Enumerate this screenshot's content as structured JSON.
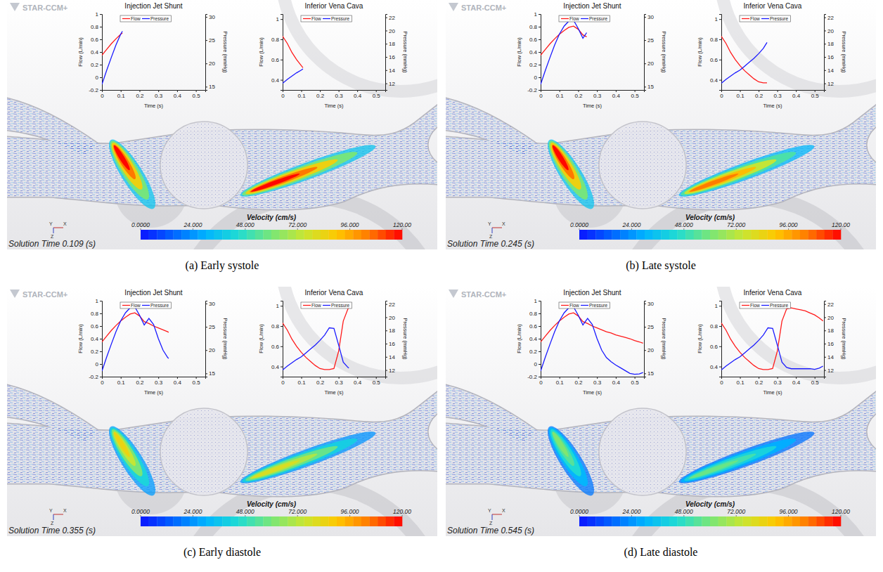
{
  "chart_data": [
    {
      "type": "line",
      "title": "Injection Jet Shunt",
      "x_label": "Time (s)",
      "y_label": "Flow (L/min)",
      "y2_label": "Pressure (mmHg)",
      "x": [
        0,
        0.025,
        0.05,
        0.075,
        0.1,
        0.109
      ],
      "series": [
        {
          "name": "Flow",
          "color": "#ff1a1a",
          "values": [
            0.35,
            0.44,
            0.53,
            0.61,
            0.68,
            0.7
          ]
        },
        {
          "name": "Pressure",
          "color": "#1a1aff",
          "axis": "y2",
          "values": [
            15.5,
            18.5,
            21.3,
            24.0,
            26.3,
            26.9
          ]
        }
      ],
      "xlim": [
        0,
        0.55
      ],
      "xticks": [
        0,
        0.1,
        0.2,
        0.3,
        0.4,
        0.5
      ],
      "ylim": [
        -0.2,
        1
      ],
      "yticks": [
        -0.2,
        0,
        0.2,
        0.4,
        0.6,
        0.8,
        1
      ],
      "y2lim": [
        14.3,
        30.6
      ],
      "y2ticks": [
        15,
        20,
        25,
        30
      ],
      "legend": "top",
      "grid": false
    },
    {
      "type": "line",
      "title": "Inferior Vena Cava",
      "x_label": "Time (s)",
      "y_label": "Flow (L/min)",
      "y2_label": "Pressure (mmHg)",
      "x": [
        0,
        0.025,
        0.05,
        0.075,
        0.1,
        0.109
      ],
      "series": [
        {
          "name": "Flow",
          "color": "#ff1a1a",
          "values": [
            0.83,
            0.76,
            0.67,
            0.6,
            0.54,
            0.52
          ]
        },
        {
          "name": "Pressure",
          "color": "#1a1aff",
          "axis": "y2",
          "values": [
            12.0,
            12.6,
            13.1,
            13.6,
            14.0,
            14.2
          ]
        }
      ],
      "xlim": [
        0,
        0.55
      ],
      "xticks": [
        0,
        0.1,
        0.2,
        0.3,
        0.4,
        0.5
      ],
      "ylim": [
        0.3,
        1.05
      ],
      "yticks": [
        0.4,
        0.6,
        0.8,
        1
      ],
      "y2lim": [
        11,
        22.5
      ],
      "y2ticks": [
        12,
        14,
        16,
        18,
        20,
        22
      ],
      "legend": "top",
      "grid": false
    },
    {
      "type": "line",
      "title": "Injection Jet Shunt",
      "x_label": "Time (s)",
      "y_label": "Flow (L/min)",
      "y2_label": "Pressure (mmHg)",
      "x": [
        0,
        0.025,
        0.05,
        0.075,
        0.1,
        0.125,
        0.15,
        0.175,
        0.2,
        0.225,
        0.245
      ],
      "series": [
        {
          "name": "Flow",
          "color": "#ff1a1a",
          "values": [
            0.35,
            0.44,
            0.53,
            0.61,
            0.68,
            0.74,
            0.79,
            0.81,
            0.76,
            0.67,
            0.64
          ]
        },
        {
          "name": "Pressure",
          "color": "#1a1aff",
          "axis": "y2",
          "values": [
            15.5,
            18.5,
            21.3,
            24.0,
            26.3,
            28.0,
            29.1,
            29.3,
            27.5,
            25.4,
            26.6
          ]
        }
      ],
      "xlim": [
        0,
        0.55
      ],
      "xticks": [
        0,
        0.1,
        0.2,
        0.3,
        0.4,
        0.5
      ],
      "ylim": [
        -0.2,
        1
      ],
      "yticks": [
        -0.2,
        0,
        0.2,
        0.4,
        0.6,
        0.8,
        1
      ],
      "y2lim": [
        14.3,
        30.6
      ],
      "y2ticks": [
        15,
        20,
        25,
        30
      ],
      "legend": "top",
      "grid": false
    },
    {
      "type": "line",
      "title": "Inferior Vena Cava",
      "x_label": "Time (s)",
      "y_label": "Flow (L/min)",
      "y2_label": "Pressure (mmHg)",
      "x": [
        0,
        0.025,
        0.05,
        0.075,
        0.1,
        0.125,
        0.15,
        0.175,
        0.2,
        0.225,
        0.245
      ],
      "series": [
        {
          "name": "Flow",
          "color": "#ff1a1a",
          "values": [
            0.83,
            0.76,
            0.67,
            0.6,
            0.54,
            0.49,
            0.45,
            0.41,
            0.38,
            0.37,
            0.37
          ]
        },
        {
          "name": "Pressure",
          "color": "#1a1aff",
          "axis": "y2",
          "values": [
            12.0,
            12.6,
            13.1,
            13.6,
            14.0,
            14.6,
            15.2,
            15.8,
            16.5,
            17.3,
            18.2
          ]
        }
      ],
      "xlim": [
        0,
        0.55
      ],
      "xticks": [
        0,
        0.1,
        0.2,
        0.3,
        0.4,
        0.5
      ],
      "ylim": [
        0.3,
        1.05
      ],
      "yticks": [
        0.4,
        0.6,
        0.8,
        1
      ],
      "y2lim": [
        11,
        22.5
      ],
      "y2ticks": [
        12,
        14,
        16,
        18,
        20,
        22
      ],
      "legend": "top",
      "grid": false
    },
    {
      "type": "line",
      "title": "Injection Jet Shunt",
      "x_label": "Time (s)",
      "y_label": "Flow (L/min)",
      "y2_label": "Pressure (mmHg)",
      "x": [
        0,
        0.025,
        0.05,
        0.075,
        0.1,
        0.125,
        0.15,
        0.175,
        0.2,
        0.225,
        0.25,
        0.275,
        0.3,
        0.325,
        0.35,
        0.355
      ],
      "series": [
        {
          "name": "Flow",
          "color": "#ff1a1a",
          "values": [
            0.35,
            0.44,
            0.53,
            0.61,
            0.68,
            0.74,
            0.79,
            0.81,
            0.76,
            0.67,
            0.64,
            0.6,
            0.57,
            0.54,
            0.51,
            0.5
          ]
        },
        {
          "name": "Pressure",
          "color": "#1a1aff",
          "axis": "y2",
          "values": [
            15.5,
            18.5,
            21.3,
            24.0,
            26.3,
            28.0,
            29.1,
            29.3,
            27.5,
            25.4,
            26.8,
            25.5,
            22.5,
            20.0,
            18.4,
            18.2
          ]
        }
      ],
      "xlim": [
        0,
        0.55
      ],
      "xticks": [
        0,
        0.1,
        0.2,
        0.3,
        0.4,
        0.5
      ],
      "ylim": [
        -0.2,
        1
      ],
      "yticks": [
        -0.2,
        0,
        0.2,
        0.4,
        0.6,
        0.8,
        1
      ],
      "y2lim": [
        14.3,
        30.6
      ],
      "y2ticks": [
        15,
        20,
        25,
        30
      ],
      "legend": "top",
      "grid": false
    },
    {
      "type": "line",
      "title": "Inferior Vena Cava",
      "x_label": "Time (s)",
      "y_label": "Flow (L/min)",
      "y2_label": "Pressure (mmHg)",
      "x": [
        0,
        0.025,
        0.05,
        0.075,
        0.1,
        0.125,
        0.15,
        0.175,
        0.2,
        0.225,
        0.25,
        0.275,
        0.3,
        0.325,
        0.35,
        0.355
      ],
      "series": [
        {
          "name": "Flow",
          "color": "#ff1a1a",
          "values": [
            0.83,
            0.76,
            0.67,
            0.6,
            0.54,
            0.49,
            0.45,
            0.41,
            0.38,
            0.37,
            0.37,
            0.38,
            0.55,
            0.85,
            0.97,
            0.98
          ]
        },
        {
          "name": "Pressure",
          "color": "#1a1aff",
          "axis": "y2",
          "values": [
            12.0,
            12.6,
            13.1,
            13.6,
            14.0,
            14.6,
            15.2,
            15.8,
            16.5,
            17.3,
            18.4,
            18.3,
            15.8,
            13.2,
            12.4,
            12.3
          ]
        }
      ],
      "xlim": [
        0,
        0.55
      ],
      "xticks": [
        0,
        0.1,
        0.2,
        0.3,
        0.4,
        0.5
      ],
      "ylim": [
        0.3,
        1.05
      ],
      "yticks": [
        0.4,
        0.6,
        0.8,
        1
      ],
      "y2lim": [
        11,
        22.5
      ],
      "y2ticks": [
        12,
        14,
        16,
        18,
        20,
        22
      ],
      "legend": "top",
      "grid": false
    },
    {
      "type": "line",
      "title": "Injection Jet Shunt",
      "x_label": "Time (s)",
      "y_label": "Flow (L/min)",
      "y2_label": "Pressure (mmHg)",
      "x": [
        0,
        0.025,
        0.05,
        0.075,
        0.1,
        0.125,
        0.15,
        0.175,
        0.2,
        0.225,
        0.25,
        0.275,
        0.3,
        0.325,
        0.35,
        0.375,
        0.4,
        0.425,
        0.45,
        0.475,
        0.5,
        0.525,
        0.545
      ],
      "series": [
        {
          "name": "Flow",
          "color": "#ff1a1a",
          "values": [
            0.35,
            0.44,
            0.53,
            0.61,
            0.68,
            0.74,
            0.79,
            0.81,
            0.76,
            0.67,
            0.64,
            0.6,
            0.57,
            0.54,
            0.51,
            0.49,
            0.46,
            0.44,
            0.42,
            0.4,
            0.37,
            0.35,
            0.33
          ]
        },
        {
          "name": "Pressure",
          "color": "#1a1aff",
          "axis": "y2",
          "values": [
            15.5,
            18.5,
            21.3,
            24.0,
            26.3,
            28.0,
            29.1,
            29.3,
            27.5,
            25.4,
            26.8,
            25.5,
            22.5,
            20.0,
            18.4,
            17.5,
            16.8,
            16.2,
            15.6,
            15.0,
            14.8,
            14.9,
            15.2
          ]
        }
      ],
      "xlim": [
        0,
        0.55
      ],
      "xticks": [
        0,
        0.1,
        0.2,
        0.3,
        0.4,
        0.5
      ],
      "ylim": [
        -0.2,
        1
      ],
      "yticks": [
        -0.2,
        0,
        0.2,
        0.4,
        0.6,
        0.8,
        1
      ],
      "y2lim": [
        14.3,
        30.6
      ],
      "y2ticks": [
        15,
        20,
        25,
        30
      ],
      "legend": "top",
      "grid": false
    },
    {
      "type": "line",
      "title": "Inferior Vena Cava",
      "x_label": "Time (s)",
      "y_label": "Flow (L/min)",
      "y2_label": "Pressure (mmHg)",
      "x": [
        0,
        0.025,
        0.05,
        0.075,
        0.1,
        0.125,
        0.15,
        0.175,
        0.2,
        0.225,
        0.25,
        0.275,
        0.3,
        0.325,
        0.35,
        0.375,
        0.4,
        0.425,
        0.45,
        0.475,
        0.5,
        0.525,
        0.545
      ],
      "series": [
        {
          "name": "Flow",
          "color": "#ff1a1a",
          "values": [
            0.83,
            0.76,
            0.67,
            0.6,
            0.54,
            0.49,
            0.45,
            0.41,
            0.38,
            0.37,
            0.37,
            0.38,
            0.55,
            0.85,
            0.97,
            0.98,
            0.97,
            0.96,
            0.95,
            0.93,
            0.91,
            0.88,
            0.85
          ]
        },
        {
          "name": "Pressure",
          "color": "#1a1aff",
          "axis": "y2",
          "values": [
            12.0,
            12.6,
            13.1,
            13.6,
            14.0,
            14.6,
            15.2,
            15.8,
            16.5,
            17.3,
            18.4,
            18.3,
            15.8,
            13.2,
            12.4,
            12.2,
            12.2,
            12.2,
            12.2,
            12.2,
            12.1,
            12.3,
            12.6
          ]
        }
      ],
      "xlim": [
        0,
        0.55
      ],
      "xticks": [
        0,
        0.1,
        0.2,
        0.3,
        0.4,
        0.5
      ],
      "ylim": [
        0.3,
        1.05
      ],
      "yticks": [
        0.4,
        0.6,
        0.8,
        1
      ],
      "y2lim": [
        11,
        22.5
      ],
      "y2ticks": [
        12,
        14,
        16,
        18,
        20,
        22
      ],
      "legend": "top",
      "grid": false
    }
  ],
  "figure": {
    "software": "STAR-CCM+",
    "triad": [
      "Y",
      "X",
      "Z"
    ],
    "colorbar": {
      "title": "Velocity (cm/s)",
      "range": [
        0,
        120
      ],
      "ticks": [
        {
          "value": 0,
          "label": "0.0000"
        },
        {
          "value": 24,
          "label": "24.000"
        },
        {
          "value": 48,
          "label": "48.000"
        },
        {
          "value": 72,
          "label": "72.000"
        },
        {
          "value": 96,
          "label": "96.000"
        },
        {
          "value": 120,
          "label": "120.00"
        }
      ]
    },
    "panels": [
      {
        "caption": "(a) Early systole",
        "solution_time": "Solution Time 0.109 (s)",
        "jet_peak_velocity": [
          120,
          120
        ]
      },
      {
        "caption": "(b) Late systole",
        "solution_time": "Solution Time 0.245 (s)",
        "jet_peak_velocity": [
          120,
          105
        ]
      },
      {
        "caption": "(c) Early diastole",
        "solution_time": "Solution Time 0.355 (s)",
        "jet_peak_velocity": [
          85,
          80
        ]
      },
      {
        "caption": "(d) Late diastole",
        "solution_time": "Solution Time 0.545 (s)",
        "jet_peak_velocity": [
          62,
          58
        ]
      }
    ]
  }
}
